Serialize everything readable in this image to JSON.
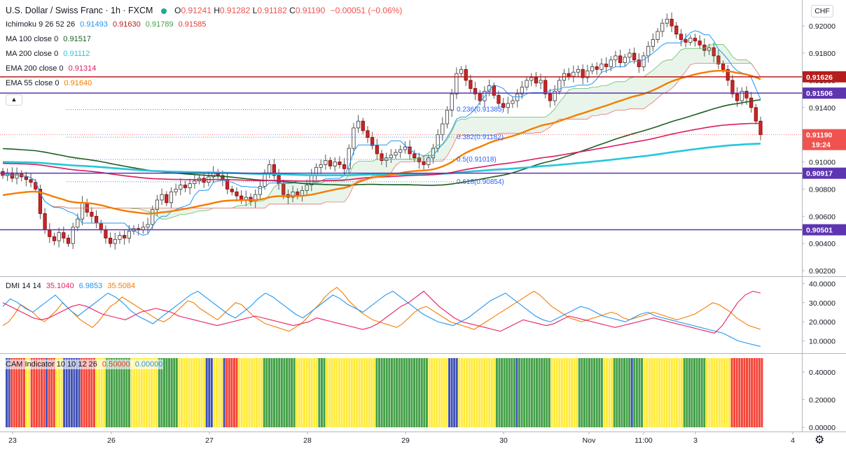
{
  "header": {
    "title": "U.S. Dollar / Swiss Franc · 1h · FXCM",
    "open_label": "O",
    "open": "0.91241",
    "high_label": "H",
    "high": "0.91282",
    "low_label": "L",
    "low": "0.91182",
    "close_label": "C",
    "close": "0.91190",
    "change": "−0.00051 (−0.06%)"
  },
  "currency_button": "CHF",
  "legend": [
    {
      "name": "Ichimoku 9 26 52 26",
      "values": [
        {
          "v": "0.91493",
          "color": "#2196f3"
        },
        {
          "v": "0.91630",
          "color": "#b71c1c"
        },
        {
          "v": "0.91789",
          "color": "#43a047"
        },
        {
          "v": "0.91585",
          "color": "#e53935"
        }
      ]
    },
    {
      "name": "MA 100 close 0",
      "values": [
        {
          "v": "0.91517",
          "color": "#1b5e20"
        }
      ]
    },
    {
      "name": "MA 200 close 0",
      "values": [
        {
          "v": "0.91112",
          "color": "#26c6da"
        }
      ]
    },
    {
      "name": "EMA 200 close 0",
      "values": [
        {
          "v": "0.91314",
          "color": "#d81b60"
        }
      ]
    },
    {
      "name": "EMA 55 close 0",
      "values": [
        {
          "v": "0.91640",
          "color": "#f57c00"
        }
      ]
    }
  ],
  "dmi_legend": {
    "name": "DMI 14 14",
    "values": [
      {
        "v": "35.1040",
        "color": "#e91e63"
      },
      {
        "v": "6.9853",
        "color": "#2196f3"
      },
      {
        "v": "35.5084",
        "color": "#f57c00"
      }
    ]
  },
  "cam_legend": {
    "name": "CAM Indicator 10 10 12 26",
    "values": [
      {
        "v": "0.50000",
        "color": "#e53935"
      },
      {
        "v": "0.00000",
        "color": "#2196f3"
      }
    ]
  },
  "chart_data": {
    "type": "candlestick",
    "symbol": "USDCHF",
    "timeframe": "1h",
    "price_axis": {
      "min": 0.9019,
      "max": 0.9216,
      "ticks": [
        "0.92000",
        "0.91800",
        "0.91600",
        "0.91400",
        "0.91200",
        "0.91000",
        "0.90800",
        "0.90600",
        "0.90400",
        "0.90200"
      ]
    },
    "time_axis": {
      "labels": [
        "23",
        "26",
        "27",
        "28",
        "29",
        "30",
        "Nov",
        "11:00",
        "3",
        "4"
      ]
    },
    "horizontal_levels": [
      {
        "price": 0.91626,
        "label": "0.91626",
        "color": "#b71c1c"
      },
      {
        "price": 0.91506,
        "label": "0.91506",
        "color": "#5e35b1"
      },
      {
        "price": 0.90917,
        "label": "0.90917",
        "color": "#5e35b1"
      },
      {
        "price": 0.90501,
        "label": "0.90501",
        "color": "#5e35b1"
      }
    ],
    "last_price": {
      "label": "0.91190",
      "countdown": "19:24",
      "color": "#ef5350"
    },
    "fib_levels": [
      {
        "ratio": "0.236",
        "price": "0.91385"
      },
      {
        "ratio": "0.382",
        "price": "0.91182"
      },
      {
        "ratio": "0.5",
        "price": "0.91018"
      },
      {
        "ratio": "0.618",
        "price": "0.90854"
      }
    ],
    "closes": [
      0.909,
      0.9092,
      0.9088,
      0.9091,
      0.9089,
      0.9087,
      0.9085,
      0.908,
      0.9062,
      0.905,
      0.9045,
      0.9042,
      0.9048,
      0.9044,
      0.904,
      0.9052,
      0.9058,
      0.907,
      0.9063,
      0.906,
      0.9055,
      0.905,
      0.9044,
      0.904,
      0.9043,
      0.9046,
      0.9044,
      0.9049,
      0.9051,
      0.905,
      0.9052,
      0.9054,
      0.9065,
      0.9072,
      0.9076,
      0.907,
      0.9078,
      0.908,
      0.9083,
      0.9081,
      0.9084,
      0.9086,
      0.9088,
      0.9085,
      0.9089,
      0.9092,
      0.909,
      0.9087,
      0.908,
      0.9078,
      0.9075,
      0.9072,
      0.9074,
      0.9071,
      0.9076,
      0.9082,
      0.9092,
      0.9098,
      0.909,
      0.9084,
      0.9076,
      0.9074,
      0.9078,
      0.9075,
      0.9079,
      0.9083,
      0.909,
      0.9096,
      0.9098,
      0.9101,
      0.9097,
      0.91,
      0.9098,
      0.9095,
      0.911,
      0.9125,
      0.913,
      0.9123,
      0.9118,
      0.9112,
      0.9106,
      0.9101,
      0.9103,
      0.9105,
      0.9107,
      0.9109,
      0.9111,
      0.9106,
      0.9103,
      0.91,
      0.9098,
      0.9103,
      0.911,
      0.912,
      0.9128,
      0.9138,
      0.915,
      0.9165,
      0.9168,
      0.916,
      0.9154,
      0.915,
      0.9145,
      0.9152,
      0.9156,
      0.9149,
      0.9143,
      0.914,
      0.9143,
      0.9145,
      0.915,
      0.9155,
      0.916,
      0.9162,
      0.9158,
      0.916,
      0.915,
      0.9145,
      0.9152,
      0.916,
      0.9165,
      0.9163,
      0.9166,
      0.9168,
      0.9162,
      0.9167,
      0.917,
      0.9168,
      0.9172,
      0.917,
      0.9175,
      0.9178,
      0.9173,
      0.9177,
      0.918,
      0.9175,
      0.917,
      0.9178,
      0.9185,
      0.919,
      0.9196,
      0.9202,
      0.9205,
      0.92,
      0.9194,
      0.919,
      0.9188,
      0.9191,
      0.9189,
      0.9186,
      0.9182,
      0.9184,
      0.9178,
      0.9172,
      0.9168,
      0.916,
      0.915,
      0.9145,
      0.9152,
      0.9147,
      0.914,
      0.913,
      0.912
    ],
    "series": [
      {
        "name": "MA 100 close 0",
        "color": "#1b5e20"
      },
      {
        "name": "MA 200 close 0",
        "color": "#26c6da"
      },
      {
        "name": "EMA 200 close 0",
        "color": "#d81b60"
      },
      {
        "name": "EMA 55 close 0",
        "color": "#f57c00"
      }
    ],
    "dmi": {
      "axis": {
        "min": 5,
        "max": 42,
        "ticks": [
          "40.0000",
          "30.0000",
          "20.0000",
          "10.0000"
        ]
      },
      "plus_di": [
        18,
        20,
        24,
        29,
        27,
        25,
        22,
        20,
        23,
        26,
        30,
        27,
        24,
        21,
        19,
        17,
        20,
        24,
        28,
        30,
        33,
        31,
        29,
        27,
        25,
        23,
        21,
        20,
        22,
        25,
        28,
        31,
        30,
        27,
        25,
        23,
        21,
        24,
        27,
        30,
        29,
        26,
        23,
        21,
        19,
        18,
        17,
        16,
        15,
        17,
        19,
        22,
        26,
        29,
        33,
        36,
        38,
        35,
        31,
        28,
        25,
        23,
        21,
        20,
        19,
        18,
        17,
        19,
        22,
        25,
        27,
        28,
        26,
        24,
        22,
        20,
        19,
        18,
        17,
        16,
        18,
        20,
        22,
        24,
        26,
        28,
        30,
        32,
        34,
        36,
        34,
        31,
        28,
        26,
        24,
        22,
        21,
        20,
        21,
        22,
        23,
        24,
        25,
        24,
        22,
        21,
        22,
        23,
        24,
        25,
        24,
        23,
        22,
        21,
        22,
        23,
        24,
        26,
        28,
        30,
        29,
        27,
        25,
        22,
        20,
        18,
        17,
        16
      ],
      "minus_di": [
        28,
        32,
        30,
        27,
        25,
        28,
        31,
        34,
        30,
        26,
        23,
        26,
        29,
        32,
        35,
        33,
        30,
        26,
        23,
        21,
        19,
        22,
        25,
        28,
        31,
        34,
        36,
        33,
        30,
        27,
        24,
        22,
        25,
        28,
        32,
        35,
        33,
        30,
        27,
        24,
        22,
        25,
        28,
        31,
        34,
        32,
        29,
        27,
        25,
        28,
        31,
        34,
        36,
        33,
        30,
        27,
        24,
        22,
        20,
        19,
        18,
        20,
        22,
        25,
        28,
        31,
        33,
        35,
        32,
        29,
        26,
        23,
        21,
        20,
        22,
        24,
        26,
        28,
        27,
        25,
        23,
        22,
        21,
        20,
        22,
        24,
        25,
        23,
        22,
        21,
        20,
        19,
        18,
        17,
        16,
        15,
        14,
        12,
        10,
        9,
        8,
        7
      ],
      "adx": [
        30,
        28,
        26,
        24,
        22,
        21,
        22,
        24,
        26,
        28,
        29,
        28,
        26,
        24,
        23,
        22,
        21,
        23,
        25,
        26,
        27,
        26,
        25,
        23,
        22,
        21,
        20,
        19,
        18,
        19,
        20,
        21,
        22,
        23,
        22,
        21,
        20,
        19,
        18,
        19,
        20,
        22,
        21,
        20,
        19,
        18,
        17,
        16,
        17,
        19,
        22,
        25,
        28,
        30,
        33,
        36,
        32,
        28,
        25,
        22,
        20,
        19,
        18,
        17,
        16,
        15,
        17,
        19,
        21,
        20,
        19,
        18,
        19,
        21,
        23,
        22,
        21,
        20,
        19,
        18,
        17,
        18,
        19,
        20,
        21,
        22,
        21,
        20,
        19,
        18,
        17,
        16,
        15,
        14,
        18,
        24,
        30,
        34,
        36,
        35
      ]
    },
    "cam": {
      "axis": {
        "min": 0,
        "max": 0.5,
        "ticks": [
          "0.40000",
          "0.20000",
          "0.00000"
        ]
      },
      "colors": {
        "R": "#f44336",
        "G": "#43a047",
        "B": "#3f51b5",
        "Y": "#ffeb3b"
      },
      "sequence": "BBRRRRRRYYRRRRRRBRRRYYYBBBBBBBRRRRRRYYYYGGGGGGGGGGYYYYYYYYYYYGGGGGGGGYYYYYYYYYYYBBBYYYYBRRRRRYYYYYYYYYYGGGGGGGGGGGGGYYYYYYYYYGGGYYYYYYYYYYYYYYYYYYYYGGGGGGGGGGGGGGGGGGGGGYYYYYYYYBBBBYYYYYYYYYYYYYYYGGGGGGGGBGGGGGGGGGGGGGYYYYYYYYYYYGGGGGGGGGGYYYYGGGGGGGBGGGGYYYYYYYYYYYYYYYYGGGGGGGGGYYYYYYYYYYRRRRRRRRRRRRR"
    }
  }
}
